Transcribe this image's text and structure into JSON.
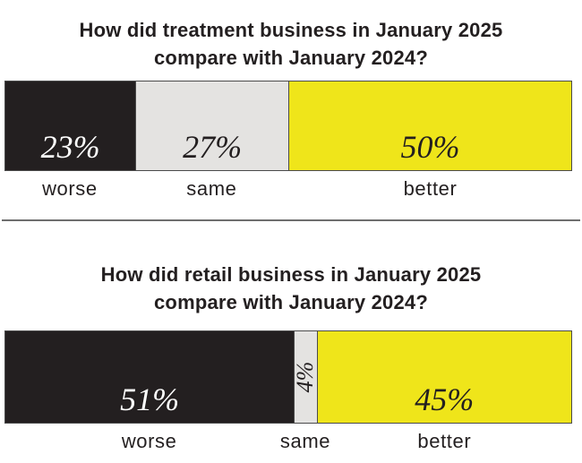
{
  "colors": {
    "background": "#ffffff",
    "text": "#231f20",
    "bar_border": "#4b4b4b",
    "divider": "#6e6e6e",
    "black_segment": "#231f20",
    "gray_segment": "#e4e3e1",
    "yellow_segment": "#efe51a"
  },
  "chart_data": [
    {
      "type": "bar",
      "stacked": true,
      "orientation": "horizontal",
      "title": "How did treatment business in January 2025 compare with January 2024?",
      "title_lines": [
        "How did treatment business in January 2025",
        "compare with January 2024?"
      ],
      "categories": [
        "worse",
        "same",
        "better"
      ],
      "values": [
        23,
        27,
        50
      ],
      "value_labels": [
        "23%",
        "27%",
        "50%"
      ],
      "segment_colors": [
        "#231f20",
        "#e4e3e1",
        "#efe51a"
      ],
      "value_text_colors": [
        "#ffffff",
        "#231f20",
        "#231f20"
      ],
      "value_label_rotation": [
        0,
        0,
        0
      ],
      "xlim": [
        0,
        100
      ],
      "unit": "percent",
      "legend": "none",
      "grid": false
    },
    {
      "type": "bar",
      "stacked": true,
      "orientation": "horizontal",
      "title": "How did retail business in January 2025 compare with January 2024?",
      "title_lines": [
        "How did retail business in January 2025",
        "compare with January 2024?"
      ],
      "categories": [
        "worse",
        "same",
        "better"
      ],
      "values": [
        51,
        4,
        45
      ],
      "value_labels": [
        "51%",
        "4%",
        "45%"
      ],
      "segment_colors": [
        "#231f20",
        "#e4e3e1",
        "#efe51a"
      ],
      "value_text_colors": [
        "#ffffff",
        "#231f20",
        "#231f20"
      ],
      "value_label_rotation": [
        0,
        -90,
        0
      ],
      "xlim": [
        0,
        100
      ],
      "unit": "percent",
      "legend": "none",
      "grid": false
    }
  ]
}
